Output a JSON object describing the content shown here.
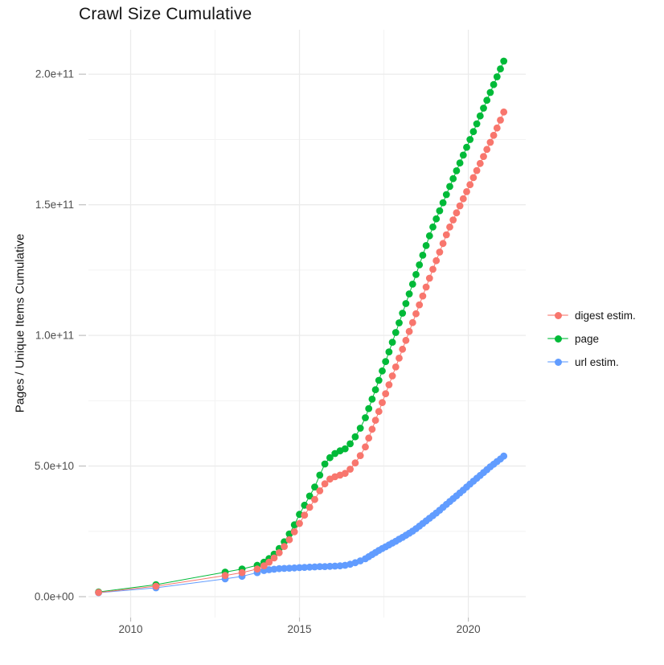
{
  "title": "Crawl Size Cumulative",
  "y_axis_title": "Pages / Unique Items Cumulative",
  "legend": {
    "items": [
      {
        "label": "digest estim.",
        "color": "#F8766D"
      },
      {
        "label": "page",
        "color": "#00BA38"
      },
      {
        "label": "url estim.",
        "color": "#619CFF"
      }
    ]
  },
  "chart_data": {
    "type": "scatter",
    "title": "Crawl Size Cumulative",
    "xlabel": "",
    "ylabel": "Pages / Unique Items Cumulative",
    "legend_position": "right",
    "grid": "on",
    "value_unit": "pages / unique items, values stored in billions (1e9)",
    "xlim": [
      2008.75,
      2021.7
    ],
    "ylim": [
      -8,
      217
    ],
    "x_ticks": [
      {
        "label": "2010",
        "year": 2010
      },
      {
        "label": "2015",
        "year": 2015
      },
      {
        "label": "2020",
        "year": 2020
      }
    ],
    "y_ticks": [
      {
        "label": "0.0e+00",
        "value": 0
      },
      {
        "label": "5.0e+10",
        "value": 50
      },
      {
        "label": "1.0e+11",
        "value": 100
      },
      {
        "label": "1.5e+11",
        "value": 150
      },
      {
        "label": "2.0e+11",
        "value": 200
      }
    ],
    "x_minor_years": [
      2012.5,
      2017.5
    ],
    "y_minor_values": [
      25,
      75,
      125,
      175
    ],
    "series": [
      {
        "name": "digest estim.",
        "color": "#F8766D",
        "points": [
          [
            2009.05,
            1.6
          ],
          [
            2010.75,
            4.0
          ],
          [
            2012.8,
            8.1
          ],
          [
            2013.3,
            9.2
          ],
          [
            2013.75,
            10.6
          ],
          [
            2013.95,
            11.8
          ],
          [
            2014.1,
            13.2
          ],
          [
            2014.25,
            14.8
          ],
          [
            2014.4,
            16.8
          ],
          [
            2014.55,
            19.2
          ],
          [
            2014.7,
            21.8
          ],
          [
            2014.85,
            24.8
          ],
          [
            2015.0,
            28.0
          ],
          [
            2015.15,
            31.2
          ],
          [
            2015.3,
            34.2
          ],
          [
            2015.45,
            37.2
          ],
          [
            2015.6,
            40.5
          ],
          [
            2015.75,
            43.2
          ],
          [
            2015.9,
            45.0
          ],
          [
            2016.05,
            45.9
          ],
          [
            2016.2,
            46.5
          ],
          [
            2016.35,
            47.2
          ],
          [
            2016.5,
            48.8
          ],
          [
            2016.65,
            51.2
          ],
          [
            2016.8,
            54.0
          ],
          [
            2016.95,
            57.3
          ],
          [
            2017.05,
            60.7
          ],
          [
            2017.15,
            64.1
          ],
          [
            2017.25,
            67.5
          ],
          [
            2017.35,
            70.9
          ],
          [
            2017.45,
            74.3
          ],
          [
            2017.55,
            77.7
          ],
          [
            2017.65,
            81.1
          ],
          [
            2017.75,
            84.5
          ],
          [
            2017.85,
            87.9
          ],
          [
            2017.95,
            91.3
          ],
          [
            2018.05,
            94.7
          ],
          [
            2018.15,
            98.1
          ],
          [
            2018.25,
            101.5
          ],
          [
            2018.35,
            104.9
          ],
          [
            2018.45,
            108.3
          ],
          [
            2018.55,
            111.7
          ],
          [
            2018.65,
            115.1
          ],
          [
            2018.75,
            118.5
          ],
          [
            2018.85,
            121.9
          ],
          [
            2018.95,
            125.3
          ],
          [
            2019.05,
            128.6
          ],
          [
            2019.15,
            131.9
          ],
          [
            2019.25,
            135.2
          ],
          [
            2019.35,
            138.5
          ],
          [
            2019.45,
            141.5
          ],
          [
            2019.55,
            144.2
          ],
          [
            2019.65,
            146.9
          ],
          [
            2019.75,
            149.6
          ],
          [
            2019.85,
            152.3
          ],
          [
            2019.95,
            155.0
          ],
          [
            2020.05,
            157.7
          ],
          [
            2020.15,
            160.4
          ],
          [
            2020.25,
            163.1
          ],
          [
            2020.35,
            165.8
          ],
          [
            2020.45,
            168.5
          ],
          [
            2020.55,
            171.2
          ],
          [
            2020.65,
            173.9
          ],
          [
            2020.75,
            176.6
          ],
          [
            2020.85,
            179.4
          ],
          [
            2020.95,
            182.4
          ],
          [
            2021.05,
            185.5
          ]
        ]
      },
      {
        "name": "page",
        "color": "#00BA38",
        "points": [
          [
            2009.05,
            1.8
          ],
          [
            2010.75,
            4.6
          ],
          [
            2012.8,
            9.4
          ],
          [
            2013.3,
            10.6
          ],
          [
            2013.75,
            12.0
          ],
          [
            2013.95,
            13.2
          ],
          [
            2014.1,
            14.6
          ],
          [
            2014.25,
            16.3
          ],
          [
            2014.4,
            18.4
          ],
          [
            2014.55,
            21.0
          ],
          [
            2014.7,
            24.0
          ],
          [
            2014.85,
            27.5
          ],
          [
            2015.0,
            31.5
          ],
          [
            2015.15,
            35.0
          ],
          [
            2015.3,
            38.5
          ],
          [
            2015.45,
            42.0
          ],
          [
            2015.6,
            46.5
          ],
          [
            2015.75,
            50.8
          ],
          [
            2015.9,
            53.2
          ],
          [
            2016.05,
            54.8
          ],
          [
            2016.2,
            55.8
          ],
          [
            2016.35,
            56.6
          ],
          [
            2016.5,
            58.5
          ],
          [
            2016.65,
            61.2
          ],
          [
            2016.8,
            64.5
          ],
          [
            2016.95,
            68.5
          ],
          [
            2017.05,
            72.0
          ],
          [
            2017.15,
            75.6
          ],
          [
            2017.25,
            79.2
          ],
          [
            2017.35,
            82.8
          ],
          [
            2017.45,
            86.4
          ],
          [
            2017.55,
            90.0
          ],
          [
            2017.65,
            93.7
          ],
          [
            2017.75,
            97.4
          ],
          [
            2017.85,
            101.1
          ],
          [
            2017.95,
            104.8
          ],
          [
            2018.05,
            108.5
          ],
          [
            2018.15,
            112.2
          ],
          [
            2018.25,
            115.9
          ],
          [
            2018.35,
            119.6
          ],
          [
            2018.45,
            123.3
          ],
          [
            2018.55,
            127.0
          ],
          [
            2018.65,
            130.7
          ],
          [
            2018.75,
            134.4
          ],
          [
            2018.85,
            138.1
          ],
          [
            2018.95,
            141.5
          ],
          [
            2019.05,
            144.6
          ],
          [
            2019.15,
            147.7
          ],
          [
            2019.25,
            150.8
          ],
          [
            2019.35,
            153.9
          ],
          [
            2019.45,
            157.0
          ],
          [
            2019.55,
            160.0
          ],
          [
            2019.65,
            163.0
          ],
          [
            2019.75,
            166.0
          ],
          [
            2019.85,
            169.0
          ],
          [
            2019.95,
            172.0
          ],
          [
            2020.05,
            175.0
          ],
          [
            2020.15,
            178.0
          ],
          [
            2020.25,
            181.0
          ],
          [
            2020.35,
            184.0
          ],
          [
            2020.45,
            187.0
          ],
          [
            2020.55,
            190.0
          ],
          [
            2020.65,
            193.0
          ],
          [
            2020.75,
            196.0
          ],
          [
            2020.85,
            199.0
          ],
          [
            2020.95,
            202.0
          ],
          [
            2021.05,
            205.0
          ]
        ]
      },
      {
        "name": "url estim.",
        "color": "#619CFF",
        "points": [
          [
            2009.05,
            1.5
          ],
          [
            2010.75,
            3.4
          ],
          [
            2012.8,
            6.8
          ],
          [
            2013.3,
            7.8
          ],
          [
            2013.75,
            9.2
          ],
          [
            2013.95,
            10.0
          ],
          [
            2014.1,
            10.3
          ],
          [
            2014.25,
            10.5
          ],
          [
            2014.4,
            10.7
          ],
          [
            2014.55,
            10.8
          ],
          [
            2014.7,
            10.9
          ],
          [
            2014.85,
            11.0
          ],
          [
            2015.0,
            11.1
          ],
          [
            2015.15,
            11.2
          ],
          [
            2015.3,
            11.3
          ],
          [
            2015.45,
            11.4
          ],
          [
            2015.6,
            11.5
          ],
          [
            2015.75,
            11.5
          ],
          [
            2015.9,
            11.6
          ],
          [
            2016.05,
            11.7
          ],
          [
            2016.2,
            11.8
          ],
          [
            2016.35,
            12.0
          ],
          [
            2016.5,
            12.4
          ],
          [
            2016.65,
            13.0
          ],
          [
            2016.8,
            13.7
          ],
          [
            2016.95,
            14.5
          ],
          [
            2017.05,
            15.3
          ],
          [
            2017.15,
            16.1
          ],
          [
            2017.25,
            16.9
          ],
          [
            2017.35,
            17.7
          ],
          [
            2017.45,
            18.4
          ],
          [
            2017.55,
            19.1
          ],
          [
            2017.65,
            19.8
          ],
          [
            2017.75,
            20.5
          ],
          [
            2017.85,
            21.2
          ],
          [
            2017.95,
            22.0
          ],
          [
            2018.05,
            22.7
          ],
          [
            2018.15,
            23.5
          ],
          [
            2018.25,
            24.3
          ],
          [
            2018.35,
            25.1
          ],
          [
            2018.45,
            26.0
          ],
          [
            2018.55,
            27.0
          ],
          [
            2018.65,
            28.0
          ],
          [
            2018.75,
            29.0
          ],
          [
            2018.85,
            30.0
          ],
          [
            2018.95,
            31.0
          ],
          [
            2019.05,
            32.0
          ],
          [
            2019.15,
            33.1
          ],
          [
            2019.25,
            34.2
          ],
          [
            2019.35,
            35.3
          ],
          [
            2019.45,
            36.4
          ],
          [
            2019.55,
            37.5
          ],
          [
            2019.65,
            38.6
          ],
          [
            2019.75,
            39.7
          ],
          [
            2019.85,
            40.8
          ],
          [
            2019.95,
            42.0
          ],
          [
            2020.05,
            43.1
          ],
          [
            2020.15,
            44.2
          ],
          [
            2020.25,
            45.3
          ],
          [
            2020.35,
            46.4
          ],
          [
            2020.45,
            47.5
          ],
          [
            2020.55,
            48.6
          ],
          [
            2020.65,
            49.7
          ],
          [
            2020.75,
            50.7
          ],
          [
            2020.85,
            51.7
          ],
          [
            2020.95,
            52.7
          ],
          [
            2021.05,
            53.8
          ]
        ]
      }
    ]
  },
  "colors": {
    "background": "#ffffff",
    "grid_major": "#ebebeb",
    "grid_minor": "#f3f3f3",
    "tick_mark": "#bfbfbf",
    "tick_label": "#4d4d4d",
    "text": "#141414"
  }
}
